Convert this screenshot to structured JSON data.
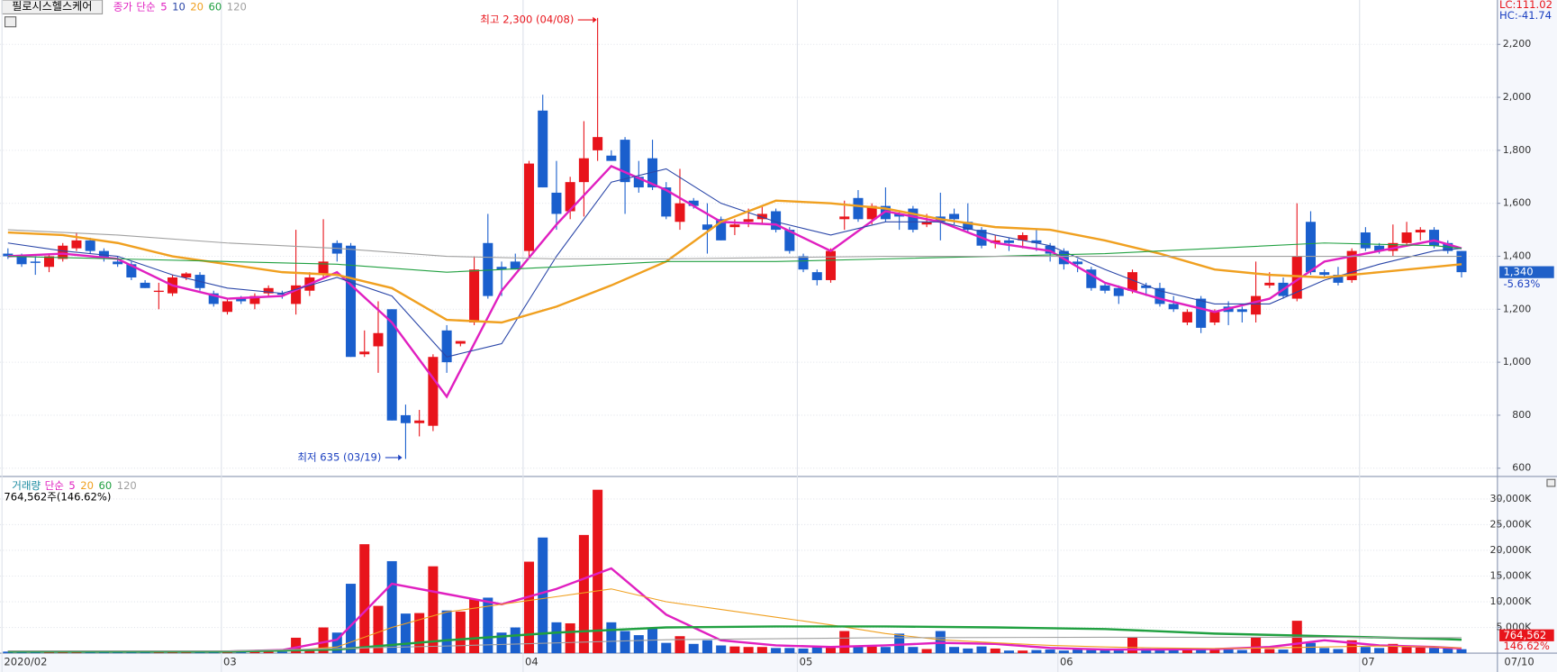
{
  "chart_data": [
    {
      "type": "candlestick",
      "title": "필로시스헬스케어",
      "price_label": "종가",
      "ma_label": "단순",
      "up_color": "#e8141b",
      "down_color": "#1a5fcd",
      "categories": [
        "2020/02",
        null,
        null,
        null,
        null,
        null,
        null,
        null,
        null,
        null,
        null,
        null,
        null,
        null,
        null,
        null,
        "03",
        null,
        null,
        null,
        null,
        null,
        null,
        null,
        null,
        null,
        null,
        null,
        null,
        null,
        null,
        null,
        null,
        null,
        null,
        null,
        null,
        null,
        "04",
        null,
        null,
        null,
        null,
        null,
        null,
        null,
        null,
        null,
        null,
        null,
        null,
        null,
        null,
        null,
        null,
        null,
        null,
        null,
        "05",
        null,
        null,
        null,
        null,
        null,
        null,
        null,
        null,
        null,
        null,
        null,
        null,
        null,
        null,
        null,
        null,
        null,
        null,
        "06",
        null,
        null,
        null,
        null,
        null,
        null,
        null,
        null,
        null,
        null,
        null,
        null,
        null,
        null,
        null,
        null,
        null,
        null,
        null,
        null,
        null,
        "07",
        null,
        null,
        null,
        null,
        null,
        null,
        null
      ],
      "open": [
        1410,
        1400,
        1380,
        1360,
        1390,
        1430,
        1460,
        1420,
        1380,
        1370,
        1300,
        1270,
        1260,
        1320,
        1330,
        1260,
        1190,
        1240,
        1220,
        1260,
        1260,
        1220,
        1270,
        1330,
        1450,
        1440,
        1030,
        1060,
        1200,
        800,
        770,
        760,
        1120,
        1070,
        1150,
        1450,
        1360,
        1380,
        1420,
        1950,
        1640,
        1570,
        1680,
        1800,
        1780,
        1840,
        1700,
        1770,
        1660,
        1530,
        1610,
        1520,
        1540,
        1510,
        1530,
        1540,
        1570,
        1500,
        1400,
        1340,
        1310,
        1540,
        1620,
        1540,
        1590,
        1560,
        1580,
        1520,
        1550,
        1560,
        1530,
        1500,
        1450,
        1460,
        1460,
        1460,
        1440,
        1420,
        1380,
        1350,
        1290,
        1280,
        1270,
        1290,
        1280,
        1220,
        1150,
        1240,
        1150,
        1210,
        1200,
        1180,
        1290,
        1300,
        1240,
        1530,
        1340,
        1330,
        1310,
        1490,
        1440,
        1420,
        1450,
        1490,
        1500,
        1450,
        1420
      ],
      "high": [
        1430,
        1410,
        1400,
        1410,
        1450,
        1490,
        1470,
        1430,
        1400,
        1380,
        1310,
        1300,
        1330,
        1340,
        1340,
        1270,
        1240,
        1250,
        1260,
        1290,
        1270,
        1500,
        1340,
        1540,
        1460,
        1450,
        1120,
        1230,
        1200,
        840,
        820,
        1030,
        1140,
        1080,
        1400,
        1560,
        1380,
        1410,
        1760,
        2010,
        1760,
        1700,
        1910,
        2300,
        1800,
        1850,
        1760,
        1840,
        1680,
        1730,
        1620,
        1600,
        1550,
        1540,
        1580,
        1590,
        1580,
        1510,
        1410,
        1350,
        1430,
        1610,
        1650,
        1600,
        1660,
        1570,
        1590,
        1560,
        1640,
        1580,
        1600,
        1510,
        1480,
        1470,
        1490,
        1500,
        1450,
        1430,
        1390,
        1360,
        1300,
        1290,
        1350,
        1300,
        1300,
        1250,
        1200,
        1250,
        1200,
        1230,
        1210,
        1380,
        1340,
        1320,
        1600,
        1570,
        1350,
        1360,
        1430,
        1510,
        1450,
        1520,
        1530,
        1510,
        1510,
        1460,
        1420
      ],
      "low": [
        1390,
        1360,
        1330,
        1340,
        1380,
        1420,
        1410,
        1380,
        1360,
        1310,
        1280,
        1200,
        1250,
        1310,
        1270,
        1210,
        1180,
        1220,
        1200,
        1250,
        1240,
        1180,
        1250,
        1320,
        1380,
        1020,
        1020,
        960,
        780,
        635,
        720,
        740,
        960,
        1060,
        1140,
        1240,
        1250,
        1350,
        1400,
        1660,
        1500,
        1540,
        1550,
        1760,
        1760,
        1560,
        1640,
        1650,
        1540,
        1500,
        1580,
        1410,
        1460,
        1480,
        1510,
        1520,
        1490,
        1410,
        1340,
        1290,
        1300,
        1500,
        1530,
        1520,
        1530,
        1500,
        1490,
        1510,
        1460,
        1520,
        1490,
        1430,
        1430,
        1420,
        1430,
        1420,
        1380,
        1350,
        1340,
        1270,
        1260,
        1220,
        1260,
        1250,
        1210,
        1190,
        1140,
        1110,
        1140,
        1140,
        1150,
        1150,
        1280,
        1240,
        1230,
        1330,
        1320,
        1290,
        1300,
        1420,
        1410,
        1400,
        1440,
        1460,
        1430,
        1410,
        1320
      ],
      "close": [
        1400,
        1370,
        1375,
        1400,
        1440,
        1460,
        1420,
        1390,
        1370,
        1320,
        1280,
        1270,
        1320,
        1335,
        1280,
        1220,
        1230,
        1230,
        1250,
        1280,
        1255,
        1290,
        1320,
        1380,
        1410,
        1020,
        1040,
        1110,
        780,
        770,
        780,
        1020,
        1000,
        1080,
        1350,
        1250,
        1350,
        1350,
        1750,
        1660,
        1560,
        1680,
        1770,
        1850,
        1760,
        1680,
        1660,
        1660,
        1550,
        1600,
        1590,
        1500,
        1460,
        1520,
        1540,
        1560,
        1500,
        1420,
        1350,
        1310,
        1420,
        1550,
        1540,
        1590,
        1540,
        1550,
        1500,
        1530,
        1530,
        1540,
        1500,
        1440,
        1460,
        1450,
        1480,
        1450,
        1410,
        1370,
        1370,
        1280,
        1270,
        1250,
        1340,
        1280,
        1220,
        1200,
        1190,
        1130,
        1190,
        1190,
        1190,
        1250,
        1300,
        1250,
        1400,
        1340,
        1330,
        1300,
        1420,
        1430,
        1420,
        1450,
        1490,
        1500,
        1440,
        1420,
        1340
      ],
      "ma_series": [
        {
          "name": "5",
          "color": "#e020c0",
          "x": [
            0,
            4,
            8,
            12,
            16,
            20,
            24,
            28,
            32,
            36,
            40,
            44,
            48,
            52,
            56,
            60,
            64,
            68,
            72,
            76,
            80,
            84,
            88,
            92,
            96,
            100,
            104,
            106
          ],
          "values": [
            1400,
            1410,
            1390,
            1290,
            1240,
            1250,
            1340,
            1150,
            870,
            1270,
            1520,
            1740,
            1650,
            1530,
            1520,
            1420,
            1570,
            1530,
            1450,
            1420,
            1300,
            1240,
            1190,
            1240,
            1380,
            1420,
            1460,
            1430
          ]
        },
        {
          "name": "10",
          "color": "#2a46a8",
          "x": [
            0,
            4,
            8,
            12,
            16,
            20,
            24,
            28,
            32,
            36,
            40,
            44,
            48,
            52,
            56,
            60,
            64,
            68,
            72,
            76,
            80,
            84,
            88,
            92,
            96,
            100,
            104,
            106
          ],
          "values": [
            1450,
            1420,
            1400,
            1330,
            1280,
            1260,
            1320,
            1250,
            1020,
            1070,
            1400,
            1680,
            1730,
            1600,
            1530,
            1480,
            1530,
            1530,
            1480,
            1440,
            1350,
            1270,
            1220,
            1220,
            1310,
            1370,
            1420,
            1430
          ]
        },
        {
          "name": "20",
          "color": "#f0a020",
          "x": [
            0,
            4,
            8,
            12,
            16,
            20,
            24,
            28,
            32,
            36,
            40,
            44,
            48,
            52,
            56,
            60,
            64,
            68,
            72,
            76,
            80,
            84,
            88,
            92,
            96,
            100,
            104,
            106
          ],
          "values": [
            1490,
            1480,
            1450,
            1400,
            1370,
            1340,
            1330,
            1280,
            1160,
            1150,
            1210,
            1290,
            1380,
            1530,
            1610,
            1600,
            1580,
            1540,
            1510,
            1500,
            1460,
            1410,
            1350,
            1330,
            1320,
            1340,
            1360,
            1370
          ]
        },
        {
          "name": "60",
          "color": "#20a040",
          "x": [
            0,
            8,
            16,
            24,
            32,
            40,
            48,
            56,
            64,
            72,
            80,
            88,
            96,
            104,
            106
          ],
          "values": [
            1400,
            1390,
            1380,
            1370,
            1340,
            1360,
            1380,
            1380,
            1390,
            1400,
            1410,
            1430,
            1450,
            1440,
            1430
          ]
        },
        {
          "name": "120",
          "color": "#a0a0a0",
          "x": [
            0,
            8,
            16,
            24,
            32,
            40,
            48,
            56,
            64,
            72,
            80,
            88,
            96,
            104,
            106
          ],
          "values": [
            1500,
            1480,
            1450,
            1430,
            1400,
            1390,
            1390,
            1395,
            1400,
            1400,
            1400,
            1400,
            1400,
            1400,
            1400
          ]
        }
      ],
      "ylim": [
        580,
        2345
      ],
      "yticks": [
        600,
        800,
        {
          "value": 1000,
          "label": "1,000"
        },
        {
          "value": 1200,
          "label": "1,200"
        },
        {
          "value": 1400,
          "label": "1,400"
        },
        {
          "value": 1600,
          "label": "1,600"
        },
        {
          "value": 1800,
          "label": "1,800"
        },
        {
          "value": 2000,
          "label": "2,000"
        },
        {
          "value": 2200,
          "label": "2,200"
        }
      ],
      "annotations": [
        {
          "text": "최고 2,300 (04/08)",
          "color": "#e8141b"
        },
        {
          "text": "최저 635 (03/19)",
          "color": "#1a3fc0"
        }
      ],
      "lc_label": "LC:111.02",
      "hc_label": "HC:-41.74",
      "last_label": "1,340",
      "change_label": "-5.63%"
    },
    {
      "type": "bar",
      "volume_label": "거래량",
      "ma_label": "단순",
      "info": "764,562주(146.62%)",
      "values": [
        300,
        250,
        280,
        320,
        350,
        300,
        280,
        260,
        300,
        280,
        250,
        300,
        270,
        260,
        250,
        280,
        300,
        260,
        270,
        280,
        300,
        3000,
        600,
        5000,
        4000,
        13500,
        21200,
        9200,
        17900,
        7700,
        7800,
        16900,
        8300,
        8100,
        10500,
        10800,
        4000,
        5000,
        17800,
        22500,
        6000,
        5800,
        23000,
        31800,
        6000,
        4300,
        3500,
        4800,
        2000,
        3300,
        1800,
        2500,
        1500,
        1300,
        1200,
        1200,
        1000,
        1000,
        900,
        1300,
        1100,
        4300,
        1400,
        1300,
        1200,
        3800,
        1200,
        800,
        4300,
        1200,
        900,
        1300,
        900,
        500,
        500,
        600,
        700,
        500,
        700,
        600,
        800,
        800,
        3000,
        900,
        800,
        700,
        600,
        800,
        700,
        700,
        600,
        3000,
        800,
        700,
        6300,
        2000,
        1000,
        800,
        2500,
        1200,
        1000,
        1800,
        1200,
        1100,
        1000,
        900,
        764.562
      ],
      "ma_series": [
        {
          "name": "5",
          "color": "#e020c0",
          "x": [
            0,
            4,
            8,
            12,
            16,
            20,
            24,
            28,
            32,
            36,
            40,
            44,
            48,
            52,
            56,
            60,
            64,
            68,
            72,
            76,
            80,
            84,
            88,
            92,
            96,
            100,
            104,
            106
          ],
          "values": [
            300,
            300,
            300,
            300,
            300,
            600,
            2600,
            13500,
            11500,
            9500,
            12500,
            16500,
            7500,
            2500,
            1500,
            1200,
            1500,
            2000,
            1800,
            1000,
            700,
            700,
            800,
            1200,
            2500,
            1500,
            1200,
            900
          ]
        },
        {
          "name": "20",
          "color": "#f0a020",
          "x": [
            0,
            4,
            8,
            12,
            16,
            20,
            24,
            28,
            32,
            36,
            40,
            44,
            48,
            52,
            56,
            60,
            64,
            68,
            72,
            76,
            80,
            84,
            88,
            92,
            96,
            100,
            104,
            106
          ],
          "values": [
            300,
            300,
            300,
            300,
            300,
            400,
            1200,
            5000,
            8000,
            9500,
            11000,
            12500,
            10000,
            8500,
            7000,
            5500,
            3800,
            2600,
            2000,
            1500,
            1200,
            1000,
            900,
            1000,
            1200,
            1400,
            1200,
            1000
          ]
        },
        {
          "name": "60",
          "color": "#20a040",
          "x": [
            0,
            8,
            16,
            24,
            32,
            40,
            48,
            56,
            64,
            72,
            80,
            88,
            96,
            104,
            106
          ],
          "values": [
            300,
            300,
            300,
            700,
            2500,
            4000,
            5000,
            5200,
            5200,
            5000,
            4700,
            3800,
            3300,
            2800,
            2600
          ]
        },
        {
          "name": "120",
          "color": "#a0a0a0",
          "x": [
            0,
            16,
            32,
            48,
            64,
            80,
            96,
            106
          ],
          "values": [
            400,
            400,
            1400,
            2600,
            3000,
            3100,
            3100,
            3000
          ]
        }
      ],
      "ylim": [
        0,
        34000
      ],
      "yticks": [
        {
          "value": 5000,
          "label": "5,000K"
        },
        {
          "value": 10000,
          "label": "10,000K"
        },
        {
          "value": 15000,
          "label": "15,000K"
        },
        {
          "value": 20000,
          "label": "20,000K"
        },
        {
          "value": 25000,
          "label": "25,000K"
        },
        {
          "value": 30000,
          "label": "30,000K"
        }
      ],
      "last_label": "764,562",
      "ratio_label": "146.62%",
      "date_label": "07/10"
    }
  ]
}
